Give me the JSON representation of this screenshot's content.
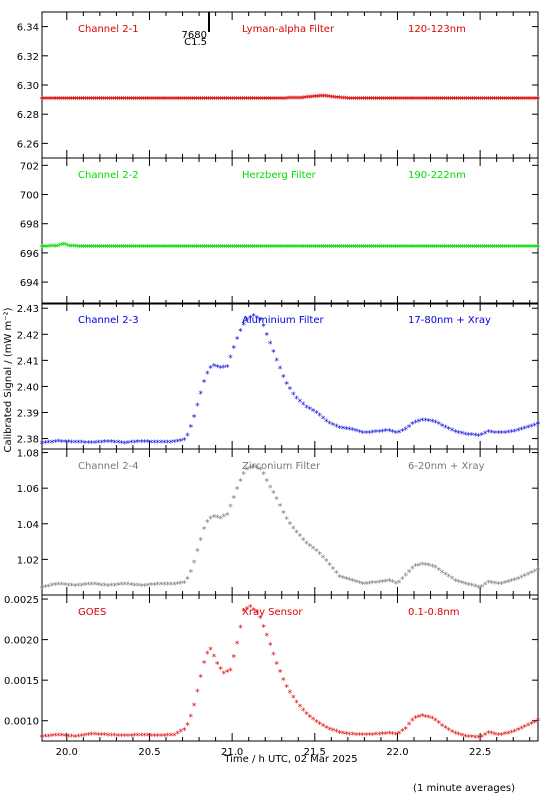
{
  "chart_data": {
    "type": "scatter",
    "xlabel": "Time / h UTC, 02 Mar 2025",
    "ylabel": "Calibrated Signal / (mW m⁻²)",
    "footnote": "(1 minute averages)",
    "marker": "asterisk",
    "xlim": [
      19.85,
      22.85
    ],
    "xticks": [
      20.0,
      20.5,
      21.0,
      21.5,
      22.0,
      22.5
    ],
    "xtick_labels": [
      "20.0",
      "20.5",
      "21.0",
      "21.5",
      "22.0",
      "22.5"
    ],
    "flare_marker": {
      "x": 20.86,
      "line1": "7680",
      "line2": "C1.5"
    },
    "panels": [
      {
        "channel": "Channel 2-1",
        "filter": "Lyman-alpha Filter",
        "band": "120-123nm",
        "color": "#dd0000",
        "ylim": [
          6.25,
          6.35
        ],
        "yticks": [
          6.26,
          6.28,
          6.3,
          6.32,
          6.34
        ],
        "ytick_labels": [
          "6.26",
          "6.28",
          "6.30",
          "6.32",
          "6.34"
        ],
        "points": [
          [
            19.85,
            6.2905
          ],
          [
            20.0,
            6.2905
          ],
          [
            20.5,
            6.2905
          ],
          [
            21.0,
            6.2905
          ],
          [
            21.3,
            6.2905
          ],
          [
            21.42,
            6.2908
          ],
          [
            21.5,
            6.2918
          ],
          [
            21.55,
            6.2922
          ],
          [
            21.62,
            6.2912
          ],
          [
            21.7,
            6.2905
          ],
          [
            22.0,
            6.2905
          ],
          [
            22.5,
            6.2905
          ],
          [
            22.85,
            6.2905
          ]
        ]
      },
      {
        "channel": "Channel 2-2",
        "filter": "Herzberg Filter",
        "band": "190-222nm",
        "color": "#00dd00",
        "ylim": [
          692.5,
          702.5
        ],
        "yticks": [
          694,
          696,
          698,
          700,
          702
        ],
        "ytick_labels": [
          "694",
          "696",
          "698",
          "700",
          "702"
        ],
        "points": [
          [
            19.85,
            696.4
          ],
          [
            19.95,
            696.45
          ],
          [
            19.98,
            696.6
          ],
          [
            20.01,
            696.45
          ],
          [
            20.1,
            696.4
          ],
          [
            20.5,
            696.4
          ],
          [
            21.0,
            696.4
          ],
          [
            21.5,
            696.42
          ],
          [
            22.0,
            696.4
          ],
          [
            22.5,
            696.4
          ],
          [
            22.85,
            696.4
          ]
        ]
      },
      {
        "channel": "Channel 2-3",
        "filter": "Aluminium Filter",
        "band": "17-80nm + Xray",
        "color": "#0000dd",
        "ylim": [
          2.376,
          2.432
        ],
        "yticks": [
          2.38,
          2.39,
          2.4,
          2.41,
          2.42,
          2.43
        ],
        "ytick_labels": [
          "2.38",
          "2.39",
          "2.40",
          "2.41",
          "2.42",
          "2.43"
        ],
        "points": [
          [
            19.85,
            2.3782
          ],
          [
            19.95,
            2.3788
          ],
          [
            20.05,
            2.3785
          ],
          [
            20.15,
            2.3783
          ],
          [
            20.25,
            2.3787
          ],
          [
            20.35,
            2.3782
          ],
          [
            20.45,
            2.3787
          ],
          [
            20.55,
            2.3785
          ],
          [
            20.65,
            2.3786
          ],
          [
            20.72,
            2.3795
          ],
          [
            20.76,
            2.386
          ],
          [
            20.8,
            2.395
          ],
          [
            20.84,
            2.404
          ],
          [
            20.88,
            2.408
          ],
          [
            20.93,
            2.407
          ],
          [
            20.97,
            2.4075
          ],
          [
            21.0,
            2.413
          ],
          [
            21.04,
            2.42
          ],
          [
            21.08,
            2.425
          ],
          [
            21.13,
            2.427
          ],
          [
            21.18,
            2.425
          ],
          [
            21.22,
            2.418
          ],
          [
            21.27,
            2.41
          ],
          [
            21.32,
            2.402
          ],
          [
            21.38,
            2.396
          ],
          [
            21.45,
            2.392
          ],
          [
            21.52,
            2.3895
          ],
          [
            21.58,
            2.386
          ],
          [
            21.65,
            2.384
          ],
          [
            21.72,
            2.3835
          ],
          [
            21.8,
            2.382
          ],
          [
            21.88,
            2.3825
          ],
          [
            21.95,
            2.383
          ],
          [
            22.0,
            2.382
          ],
          [
            22.05,
            2.3835
          ],
          [
            22.1,
            2.386
          ],
          [
            22.15,
            2.387
          ],
          [
            22.22,
            2.3865
          ],
          [
            22.28,
            2.3845
          ],
          [
            22.35,
            2.3825
          ],
          [
            22.42,
            2.3815
          ],
          [
            22.5,
            2.381
          ],
          [
            22.55,
            2.3825
          ],
          [
            22.62,
            2.382
          ],
          [
            22.7,
            2.3825
          ],
          [
            22.78,
            2.384
          ],
          [
            22.85,
            2.3855
          ]
        ]
      },
      {
        "channel": "Channel 2-4",
        "filter": "Zirconium Filter",
        "band": "6-20nm + Xray",
        "color": "#777777",
        "ylim": [
          1.0,
          1.082
        ],
        "yticks": [
          1.02,
          1.04,
          1.06,
          1.08
        ],
        "ytick_labels": [
          "1.02",
          "1.04",
          "1.06",
          "1.08"
        ],
        "points": [
          [
            19.85,
            1.004
          ],
          [
            19.95,
            1.006
          ],
          [
            20.05,
            1.005
          ],
          [
            20.15,
            1.006
          ],
          [
            20.25,
            1.005
          ],
          [
            20.35,
            1.006
          ],
          [
            20.45,
            1.005
          ],
          [
            20.55,
            1.0058
          ],
          [
            20.65,
            1.0058
          ],
          [
            20.72,
            1.007
          ],
          [
            20.76,
            1.015
          ],
          [
            20.8,
            1.028
          ],
          [
            20.84,
            1.04
          ],
          [
            20.88,
            1.044
          ],
          [
            20.93,
            1.043
          ],
          [
            20.97,
            1.045
          ],
          [
            21.0,
            1.052
          ],
          [
            21.04,
            1.062
          ],
          [
            21.08,
            1.07
          ],
          [
            21.13,
            1.072
          ],
          [
            21.18,
            1.07
          ],
          [
            21.22,
            1.062
          ],
          [
            21.27,
            1.054
          ],
          [
            21.32,
            1.044
          ],
          [
            21.38,
            1.036
          ],
          [
            21.45,
            1.029
          ],
          [
            21.52,
            1.024
          ],
          [
            21.58,
            1.018
          ],
          [
            21.65,
            1.01
          ],
          [
            21.72,
            1.008
          ],
          [
            21.8,
            1.006
          ],
          [
            21.88,
            1.007
          ],
          [
            21.95,
            1.008
          ],
          [
            22.0,
            1.006
          ],
          [
            22.05,
            1.011
          ],
          [
            22.1,
            1.016
          ],
          [
            22.15,
            1.017
          ],
          [
            22.22,
            1.016
          ],
          [
            22.28,
            1.012
          ],
          [
            22.35,
            1.008
          ],
          [
            22.42,
            1.006
          ],
          [
            22.5,
            1.004
          ],
          [
            22.55,
            1.007
          ],
          [
            22.62,
            1.006
          ],
          [
            22.7,
            1.008
          ],
          [
            22.78,
            1.011
          ],
          [
            22.85,
            1.014
          ]
        ]
      },
      {
        "channel": "GOES",
        "filter": "Xray Sensor",
        "band": "0.1-0.8nm",
        "color": "#dd0000",
        "ylim": [
          0.00075,
          0.00255
        ],
        "yticks": [
          0.001,
          0.0015,
          0.002,
          0.0025
        ],
        "ytick_labels": [
          "0.0010",
          "0.0015",
          "0.0020",
          "0.0025"
        ],
        "points": [
          [
            19.85,
            0.0008
          ],
          [
            19.95,
            0.00082
          ],
          [
            20.05,
            0.0008
          ],
          [
            20.15,
            0.00083
          ],
          [
            20.25,
            0.00082
          ],
          [
            20.35,
            0.00081
          ],
          [
            20.45,
            0.00082
          ],
          [
            20.55,
            0.00081
          ],
          [
            20.65,
            0.00082
          ],
          [
            20.72,
            0.0009
          ],
          [
            20.76,
            0.0011
          ],
          [
            20.8,
            0.00145
          ],
          [
            20.84,
            0.0018
          ],
          [
            20.87,
            0.00188
          ],
          [
            20.91,
            0.0017
          ],
          [
            20.95,
            0.00158
          ],
          [
            20.99,
            0.00162
          ],
          [
            21.03,
            0.00195
          ],
          [
            21.07,
            0.00235
          ],
          [
            21.11,
            0.0024
          ],
          [
            21.16,
            0.00232
          ],
          [
            21.21,
            0.00205
          ],
          [
            21.27,
            0.0017
          ],
          [
            21.32,
            0.00145
          ],
          [
            21.38,
            0.00125
          ],
          [
            21.45,
            0.00108
          ],
          [
            21.52,
            0.00097
          ],
          [
            21.58,
            0.0009
          ],
          [
            21.65,
            0.00085
          ],
          [
            21.72,
            0.00083
          ],
          [
            21.8,
            0.00082
          ],
          [
            21.88,
            0.00083
          ],
          [
            21.95,
            0.00084
          ],
          [
            22.0,
            0.00083
          ],
          [
            22.05,
            0.0009
          ],
          [
            22.1,
            0.00103
          ],
          [
            22.15,
            0.00106
          ],
          [
            22.22,
            0.00102
          ],
          [
            22.28,
            0.00092
          ],
          [
            22.35,
            0.00084
          ],
          [
            22.42,
            0.0008
          ],
          [
            22.5,
            0.00079
          ],
          [
            22.55,
            0.00085
          ],
          [
            22.62,
            0.00082
          ],
          [
            22.7,
            0.00086
          ],
          [
            22.78,
            0.00093
          ],
          [
            22.85,
            0.001
          ]
        ]
      }
    ]
  }
}
